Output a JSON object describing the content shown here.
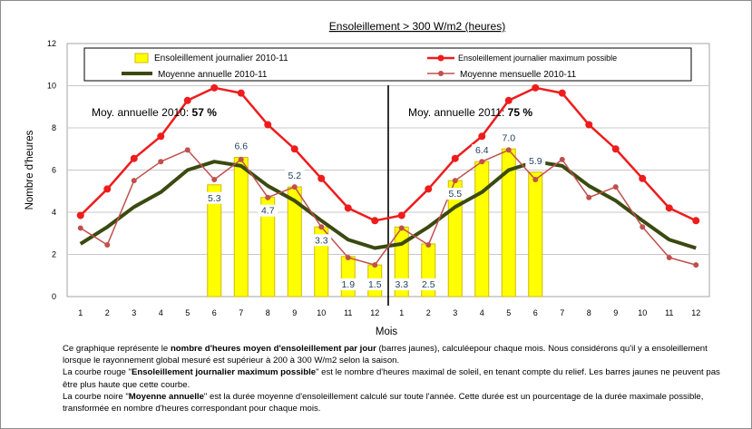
{
  "chart_data": {
    "type": "bar",
    "title": "Ensoleillement > 300 W/m2 (heures)",
    "xlabel": "Mois",
    "ylabel": "Nombre d'heures",
    "ylim": [
      0,
      12
    ],
    "yticks": [
      "0",
      "2",
      "4",
      "6",
      "8",
      "10",
      "12"
    ],
    "categories": [
      "1",
      "2",
      "3",
      "4",
      "5",
      "6",
      "7",
      "8",
      "9",
      "10",
      "11",
      "12",
      "1",
      "2",
      "3",
      "4",
      "5",
      "6",
      "7",
      "8",
      "9",
      "10",
      "11",
      "12"
    ],
    "grid": true,
    "legend": "top",
    "series": [
      {
        "name": "Ensoleillement journalier  2010-11",
        "kind": "bar",
        "color": "#ffff00",
        "values": [
          null,
          null,
          null,
          null,
          null,
          5.3,
          6.6,
          4.7,
          5.2,
          3.3,
          1.9,
          1.5,
          3.3,
          2.5,
          5.5,
          6.4,
          7.0,
          5.9,
          null,
          null,
          null,
          null,
          null,
          null
        ],
        "labels": [
          "",
          "",
          "",
          "",
          "",
          "5.3",
          "6.6",
          "4.7",
          "5.2",
          "3.3",
          "1.9",
          "1.5",
          "3.3",
          "2.5",
          "5.5",
          "6.4",
          "7.0",
          "5.9",
          "",
          "",
          "",
          "",
          "",
          ""
        ]
      },
      {
        "name": "Ensoleillement journalier maximum possible",
        "kind": "line",
        "color": "#ee1c1c",
        "values": [
          3.85,
          5.1,
          6.55,
          7.6,
          9.3,
          9.9,
          9.65,
          8.15,
          7.0,
          5.6,
          4.2,
          3.6,
          3.85,
          5.1,
          6.55,
          7.6,
          9.3,
          9.9,
          9.65,
          8.15,
          7.0,
          5.6,
          4.2,
          3.6
        ]
      },
      {
        "name": "Moyenne annuelle 2010-11",
        "kind": "line",
        "color": "#3a4a10",
        "values": [
          2.5,
          3.3,
          4.25,
          4.95,
          6.0,
          6.4,
          6.2,
          5.25,
          4.55,
          3.6,
          2.7,
          2.3,
          2.5,
          3.3,
          4.25,
          4.95,
          6.0,
          6.4,
          6.2,
          5.25,
          4.55,
          3.6,
          2.7,
          2.3
        ]
      },
      {
        "name": "Moyenne mensuelle 2010-11",
        "kind": "line",
        "color": "#c0504d",
        "values": [
          3.25,
          2.45,
          5.5,
          6.4,
          6.95,
          5.55,
          6.5,
          4.7,
          5.2,
          3.3,
          1.85,
          1.5,
          3.25,
          2.45,
          5.5,
          6.4,
          6.95,
          5.55,
          6.5,
          4.7,
          5.2,
          3.3,
          1.85,
          1.5
        ]
      }
    ],
    "annotations": [
      {
        "text": "Moy. annuelle 2010: ",
        "value": "57 %"
      },
      {
        "text": "Moy. annuelle 2011: ",
        "value": "75 %"
      }
    ]
  },
  "caption": [
    [
      "Ce graphique représente le ",
      "nombre d'heures moyen d'ensoleillement par jour",
      " (barres jaunes), calculéepour chaque mois. Nous considérons qu'il y a ensoleillement lorsque le rayonnement global mesuré est supérieur à 200 à 300 W/m2 selon la saison."
    ],
    [
      "La courbe rouge \"",
      "Ensoleillement journalier  maximum possible",
      "\" est le  nombre d'heures maximal de soleil, en tenant compte du relief. Les barres jaunes ne peuvent pas être plus haute que cette courbe."
    ],
    [
      "La courbe noire \"",
      "Moyenne annuelle",
      "\"  est la durée moyenne d'ensoleillement calculé sur toute l'année. Cette durée est un pourcentage de la durée maximale possible, transformée en nombre d'heures correspondant pour chaque mois."
    ]
  ]
}
